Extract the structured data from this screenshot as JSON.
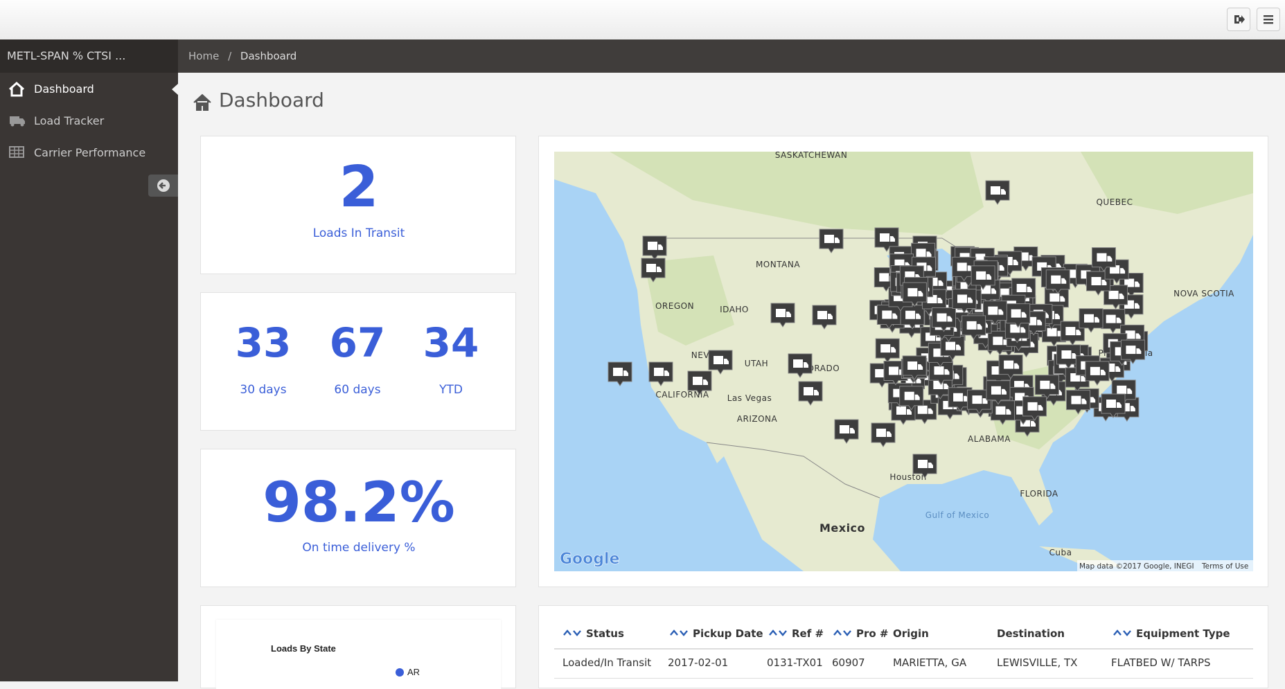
{
  "sidebar": {
    "brand": "METL-SPAN % CTSI ...",
    "menu": [
      "Dashboard",
      "Load Tracker",
      "Carrier Performance"
    ]
  },
  "breadcrumb": {
    "items": [
      "Home",
      "Dashboard"
    ],
    "separator": "/"
  },
  "page_title": "Dashboard",
  "stats": {
    "in_transit": {
      "value": "2",
      "label": "Loads In Transit"
    },
    "periods": [
      {
        "value": "33",
        "label": "30 days"
      },
      {
        "value": "67",
        "label": "60 days"
      },
      {
        "value": "34",
        "label": "YTD"
      }
    ],
    "on_time": {
      "value": "98.2%",
      "label": "On time delivery %"
    }
  },
  "map": {
    "labels": [
      "SASKATCHEWAN",
      "MONTANA",
      "OREGON",
      "IDAHO",
      "NEVADA",
      "UTAH",
      "CALIFORNIA",
      "ARIZONA",
      "Las Vegas",
      "COLORADO",
      "Mexico",
      "Houston",
      "ALABAMA",
      "FLORIDA",
      "Philadelphia",
      "QUEBEC",
      "NOVA SCOTIA",
      "Cuba",
      "Gulf of Mexico"
    ],
    "logo": "Google",
    "attribution": "Map data ©2017 Google, INEGI",
    "terms": "Terms of Use"
  },
  "loads_chart": {
    "title": "Loads By State",
    "legend": [
      "AR"
    ]
  },
  "table": {
    "columns": [
      "Status",
      "Pickup Date",
      "Ref #",
      "Pro #",
      "Origin",
      "Destination",
      "Equipment Type"
    ],
    "rows": [
      [
        "Loaded/In Transit",
        "2017-02-01",
        "0131-TX01",
        "60907",
        "MARIETTA, GA",
        "LEWISVILLE, TX",
        "FLATBED W/ TARPS"
      ]
    ]
  }
}
